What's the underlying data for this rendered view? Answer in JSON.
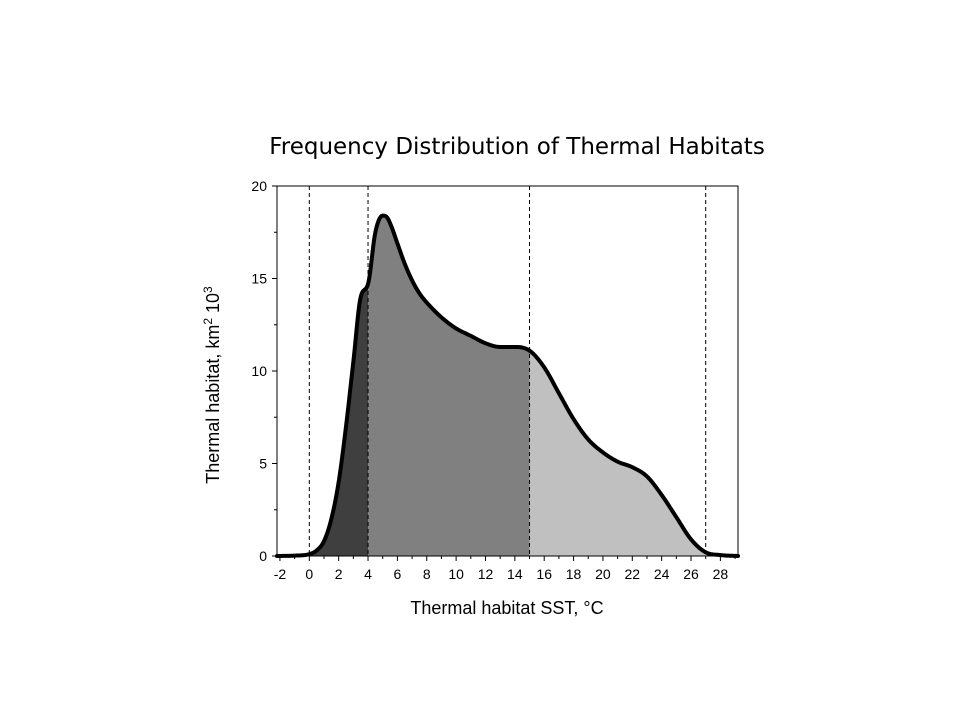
{
  "chart_data": {
    "type": "area",
    "title": "Frequency Distribution of Thermal Habitats",
    "xlabel": "Thermal habitat SST, °C",
    "ylabel": {
      "main": "Thermal habitat, km",
      "sup1": "2",
      "mid": " 10",
      "sup2": "3"
    },
    "xlim": [
      -2.2,
      29.2
    ],
    "ylim": [
      0,
      20
    ],
    "x_ticks": [
      -2,
      0,
      2,
      4,
      6,
      8,
      10,
      12,
      14,
      16,
      18,
      20,
      22,
      24,
      26,
      28
    ],
    "y_ticks": [
      0,
      5,
      10,
      15,
      20
    ],
    "vlines": [
      0,
      4,
      15,
      27
    ],
    "grid": false,
    "regions": [
      {
        "from": -2.2,
        "to": 4,
        "color": "#3f3f3f"
      },
      {
        "from": 4,
        "to": 15,
        "color": "#808080"
      },
      {
        "from": 15,
        "to": 29.2,
        "color": "#c0c0c0"
      }
    ],
    "series": [
      {
        "x": [
          -2.2,
          -1,
          0,
          0.5,
          1,
          1.5,
          2,
          2.5,
          3,
          3.5,
          4,
          4.5,
          5,
          5.3,
          5.6,
          6,
          6.5,
          7,
          7.5,
          8,
          9,
          10,
          11,
          12,
          13,
          14,
          15,
          16,
          17,
          18,
          19,
          20,
          21,
          22,
          23,
          24,
          25,
          26,
          27,
          28,
          29.2
        ],
        "y": [
          0,
          0.02,
          0.1,
          0.3,
          0.8,
          2.0,
          4.0,
          7.0,
          10.5,
          14.0,
          14.7,
          17.5,
          18.4,
          18.3,
          17.8,
          16.9,
          15.8,
          14.9,
          14.2,
          13.7,
          12.9,
          12.3,
          11.9,
          11.5,
          11.3,
          11.3,
          11.1,
          10.2,
          8.8,
          7.4,
          6.3,
          5.6,
          5.1,
          4.8,
          4.3,
          3.3,
          2.1,
          0.9,
          0.2,
          0.05,
          0
        ]
      }
    ]
  }
}
